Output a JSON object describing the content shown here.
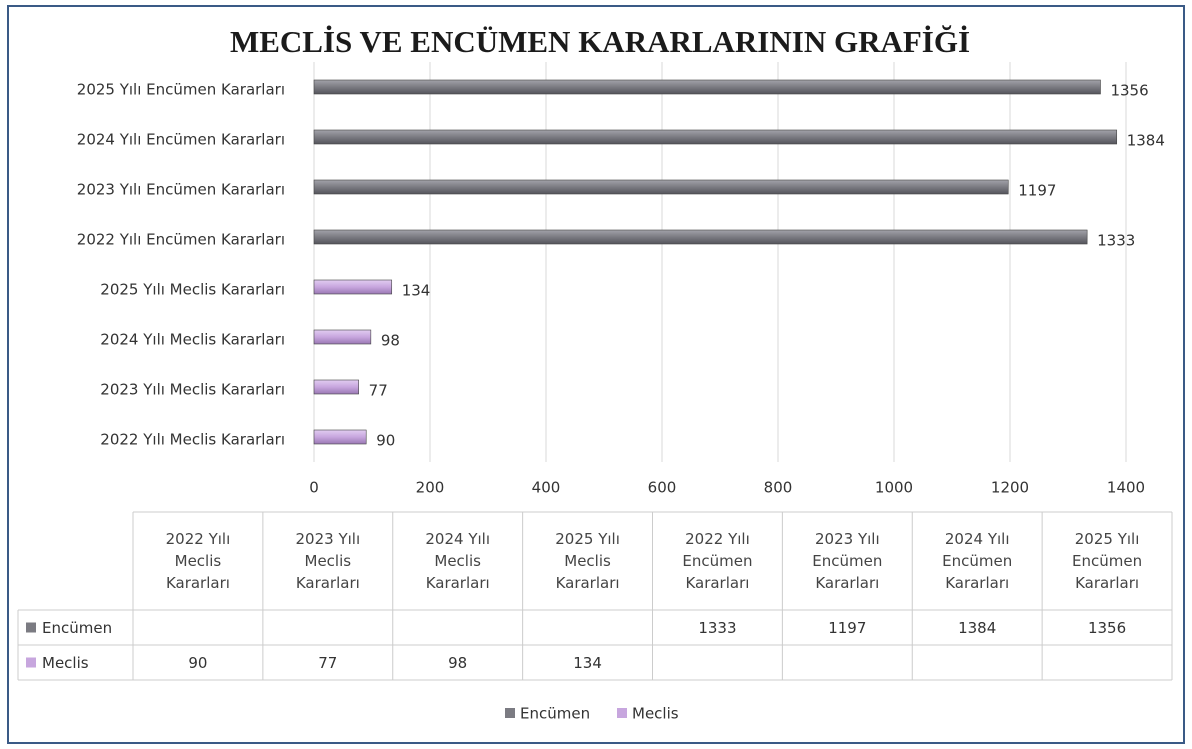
{
  "chart_data": {
    "type": "bar",
    "orientation": "horizontal",
    "title": "MECLİS VE ENCÜMEN KARARLARININ GRAFİĞİ",
    "categories": [
      "2022 Yılı Meclis Kararları",
      "2023 Yılı Meclis Kararları",
      "2024 Yılı Meclis Kararları",
      "2025 Yılı Meclis Kararları",
      "2022 Yılı Encümen Kararları",
      "2023 Yılı Encümen Kararları",
      "2024 Yılı Encümen Kararları",
      "2025 Yılı Encümen Kararları"
    ],
    "series": [
      {
        "name": "Encümen",
        "color": "#7b7b82",
        "values": [
          null,
          null,
          null,
          null,
          1333,
          1197,
          1384,
          1356
        ]
      },
      {
        "name": "Meclis",
        "color": "#c7a6de",
        "values": [
          90,
          77,
          98,
          134,
          null,
          null,
          null,
          null
        ]
      }
    ],
    "xlim": [
      0,
      1400
    ],
    "xticks": [
      0,
      200,
      400,
      600,
      800,
      1000,
      1200,
      1400
    ],
    "grid": true,
    "legend": "bottom",
    "data_table": true
  }
}
